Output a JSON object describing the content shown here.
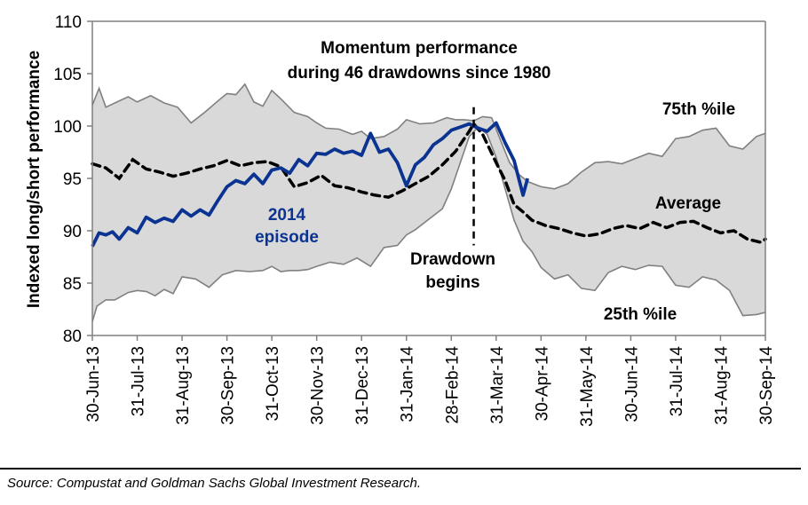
{
  "chart_data": {
    "type": "area",
    "title": "Momentum performance during 46 drawdowns since 1980",
    "title_lines": [
      "Momentum performance",
      "during 46 drawdowns since 1980"
    ],
    "xlabel": "",
    "ylabel": "Indexed long/short performance",
    "ylim": [
      80,
      110
    ],
    "yticks": [
      80,
      85,
      90,
      95,
      100,
      105,
      110
    ],
    "grid": false,
    "x_tick_labels": [
      "30-Jun-13",
      "31-Jul-13",
      "31-Aug-13",
      "30-Sep-13",
      "31-Oct-13",
      "30-Nov-13",
      "31-Dec-13",
      "31-Jan-14",
      "28-Feb-14",
      "31-Mar-14",
      "30-Apr-14",
      "31-May-14",
      "30-Jun-14",
      "31-Jul-14",
      "31-Aug-14",
      "30-Sep-14"
    ],
    "x_unit": "months since 30-Jun-13",
    "xlim": [
      0,
      15
    ],
    "drawdown_start_x": 8.5,
    "annotations": {
      "p75": "75th %ile",
      "average": "Average",
      "p25": "25th %ile",
      "episode_line1": "2014",
      "episode_line2": "episode",
      "drawdown_line1": "Drawdown",
      "drawdown_line2": "begins"
    },
    "colors": {
      "band_fill": "#d9d9d9",
      "band_edge": "#808080",
      "average": "#000000",
      "episode": "#0b3392"
    },
    "series": [
      {
        "name": "75th percentile",
        "x": [
          0,
          0.15,
          0.3,
          0.5,
          0.8,
          1.0,
          1.3,
          1.6,
          1.9,
          2.2,
          2.5,
          2.8,
          3.0,
          3.2,
          3.4,
          3.6,
          3.8,
          4.0,
          4.2,
          4.5,
          4.8,
          5.0,
          5.2,
          5.5,
          5.8,
          6.0,
          6.2,
          6.5,
          6.8,
          7.0,
          7.3,
          7.6,
          7.9,
          8.1,
          8.3,
          8.5,
          8.7,
          8.9,
          9.1,
          9.3,
          9.5,
          9.7,
          10.0,
          10.3,
          10.6,
          10.9,
          11.2,
          11.5,
          11.8,
          12.1,
          12.4,
          12.7,
          13.0,
          13.3,
          13.6,
          13.9,
          14.2,
          14.5,
          14.8,
          15.0
        ],
        "values": [
          102.0,
          103.6,
          101.8,
          102.2,
          102.8,
          102.3,
          102.9,
          102.2,
          101.8,
          100.3,
          101.3,
          102.4,
          103.1,
          103.0,
          104.0,
          102.3,
          101.9,
          103.4,
          102.6,
          101.3,
          100.9,
          100.3,
          99.8,
          99.7,
          99.2,
          99.5,
          98.8,
          99.0,
          99.7,
          100.6,
          100.2,
          100.3,
          100.8,
          100.6,
          100.6,
          100.5,
          100.9,
          100.8,
          98.6,
          96.5,
          95.4,
          94.7,
          94.2,
          94.0,
          94.5,
          95.6,
          96.5,
          96.6,
          96.4,
          96.9,
          97.4,
          97.1,
          98.8,
          99.0,
          99.6,
          99.8,
          98.1,
          97.8,
          99.0,
          99.3
        ]
      },
      {
        "name": "25th percentile",
        "x": [
          0,
          0.1,
          0.3,
          0.5,
          0.8,
          1.0,
          1.2,
          1.4,
          1.6,
          1.8,
          2.0,
          2.3,
          2.6,
          2.9,
          3.2,
          3.5,
          3.8,
          4.0,
          4.2,
          4.4,
          4.6,
          4.8,
          5.0,
          5.3,
          5.6,
          5.9,
          6.2,
          6.5,
          6.8,
          7.0,
          7.2,
          7.5,
          7.8,
          8.0,
          8.2,
          8.4,
          8.6,
          8.8,
          9.0,
          9.2,
          9.4,
          9.6,
          9.8,
          10.0,
          10.3,
          10.6,
          10.9,
          11.2,
          11.5,
          11.8,
          12.1,
          12.4,
          12.7,
          13.0,
          13.3,
          13.6,
          13.9,
          14.2,
          14.5,
          14.8,
          15.0
        ],
        "values": [
          81.3,
          82.8,
          83.4,
          83.4,
          84.1,
          84.3,
          84.2,
          83.8,
          84.4,
          84.0,
          85.6,
          85.4,
          84.6,
          85.8,
          86.2,
          86.1,
          86.2,
          86.6,
          86.1,
          86.2,
          86.2,
          86.3,
          86.6,
          87.0,
          86.8,
          87.4,
          86.6,
          88.4,
          88.6,
          89.6,
          90.1,
          91.1,
          92.1,
          94.0,
          96.5,
          99.0,
          99.9,
          99.2,
          97.0,
          94.0,
          91.0,
          89.0,
          88.0,
          86.5,
          85.4,
          85.8,
          84.5,
          84.3,
          86.0,
          86.6,
          86.3,
          86.7,
          86.6,
          84.8,
          84.6,
          85.6,
          85.3,
          84.3,
          81.9,
          82.0,
          82.2
        ]
      },
      {
        "name": "Average",
        "x": [
          0,
          0.3,
          0.6,
          0.9,
          1.2,
          1.5,
          1.8,
          2.1,
          2.4,
          2.7,
          3.0,
          3.3,
          3.6,
          3.9,
          4.2,
          4.5,
          4.8,
          5.1,
          5.4,
          5.7,
          6.0,
          6.3,
          6.6,
          6.9,
          7.2,
          7.5,
          7.8,
          8.1,
          8.4,
          8.5,
          8.7,
          9.0,
          9.2,
          9.4,
          9.6,
          9.8,
          10.1,
          10.4,
          10.7,
          11.0,
          11.3,
          11.6,
          11.9,
          12.2,
          12.5,
          12.8,
          13.1,
          13.4,
          13.7,
          14.0,
          14.3,
          14.6,
          14.9,
          15.0
        ],
        "values": [
          96.4,
          96.0,
          95.0,
          96.8,
          95.9,
          95.6,
          95.2,
          95.5,
          95.9,
          96.2,
          96.7,
          96.2,
          96.5,
          96.6,
          96.1,
          94.2,
          94.6,
          95.3,
          94.3,
          94.1,
          93.7,
          93.4,
          93.2,
          93.8,
          94.5,
          95.2,
          96.3,
          97.6,
          99.5,
          100.2,
          99.2,
          96.5,
          94.8,
          92.5,
          91.8,
          91.0,
          90.5,
          90.2,
          89.8,
          89.5,
          89.7,
          90.2,
          90.5,
          90.2,
          90.8,
          90.3,
          90.8,
          90.9,
          90.3,
          89.8,
          90.0,
          89.2,
          88.9,
          89.2
        ]
      },
      {
        "name": "2014 episode",
        "x": [
          0,
          0.15,
          0.3,
          0.45,
          0.6,
          0.8,
          1.0,
          1.2,
          1.4,
          1.6,
          1.8,
          2.0,
          2.2,
          2.4,
          2.6,
          2.8,
          3.0,
          3.2,
          3.4,
          3.6,
          3.8,
          4.0,
          4.2,
          4.4,
          4.6,
          4.8,
          5.0,
          5.2,
          5.4,
          5.6,
          5.8,
          6.0,
          6.2,
          6.4,
          6.6,
          6.8,
          7.0,
          7.2,
          7.4,
          7.6,
          7.8,
          8.0,
          8.2,
          8.4,
          8.6,
          8.8,
          9.0,
          9.2,
          9.4,
          9.6,
          9.7
        ],
        "values": [
          88.5,
          89.8,
          89.6,
          89.9,
          89.2,
          90.3,
          89.8,
          91.3,
          90.8,
          91.2,
          90.9,
          92.0,
          91.4,
          92.0,
          91.5,
          92.9,
          94.2,
          94.8,
          94.5,
          95.4,
          94.5,
          95.8,
          96.0,
          95.5,
          96.8,
          96.2,
          97.4,
          97.3,
          97.8,
          97.4,
          97.6,
          97.2,
          99.3,
          97.5,
          97.8,
          96.5,
          94.3,
          96.3,
          97.0,
          98.2,
          98.8,
          99.6,
          99.9,
          100.2,
          99.8,
          99.5,
          100.3,
          98.4,
          96.7,
          93.4,
          95.0
        ]
      }
    ]
  },
  "footer": {
    "source": "Source: Compustat and Goldman Sachs Global Investment Research."
  }
}
